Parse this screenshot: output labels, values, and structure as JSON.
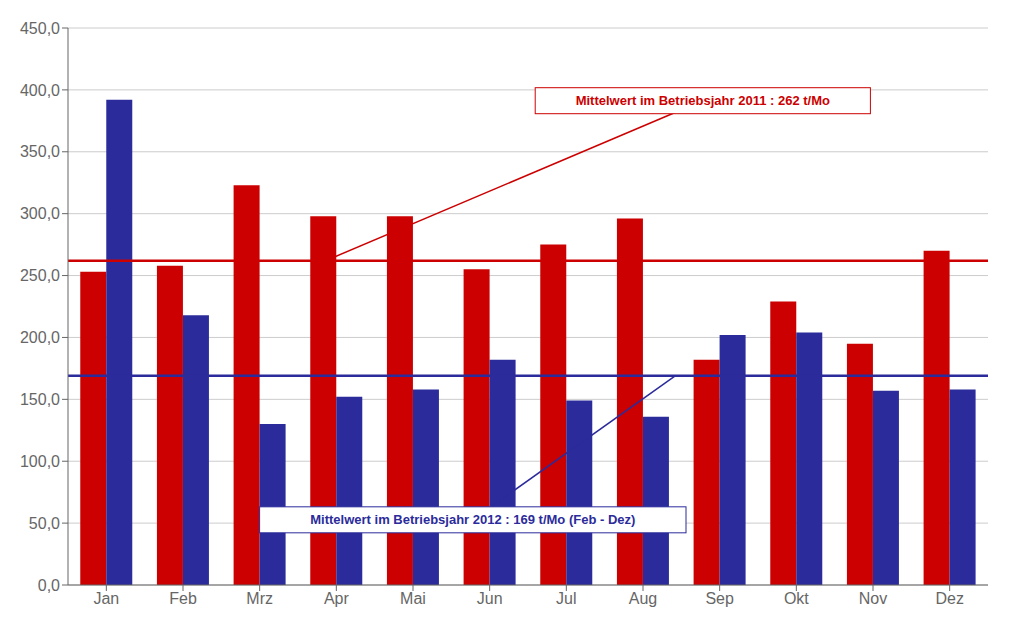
{
  "chart_data": {
    "type": "bar",
    "categories": [
      "Jan",
      "Feb",
      "Mrz",
      "Apr",
      "Mai",
      "Jun",
      "Jul",
      "Aug",
      "Sep",
      "Okt",
      "Nov",
      "Dez"
    ],
    "series": [
      {
        "color": "#CC0000",
        "values": [
          253,
          258,
          323,
          298,
          298,
          255,
          275,
          296,
          182,
          229,
          195,
          270
        ]
      },
      {
        "color": "#2B2B9B",
        "values": [
          392,
          218,
          130,
          152,
          158,
          182,
          149,
          136,
          202,
          204,
          157,
          158
        ]
      }
    ],
    "mean_lines": [
      {
        "value": 262,
        "color": "#CC0000",
        "annotation": "Mittelwert im Betriebsjahr 2011 : 262 t/Mo"
      },
      {
        "value": 169,
        "color": "#2B2B9B",
        "annotation": "Mittelwert im Betriebsjahr 2012 : 169 t/Mo (Feb - Dez)"
      }
    ],
    "ylim": [
      0,
      450
    ],
    "yticks": [
      {
        "value": 0,
        "label": "0,0"
      },
      {
        "value": 50,
        "label": "50,0"
      },
      {
        "value": 100,
        "label": "100,0"
      },
      {
        "value": 150,
        "label": "150,0"
      },
      {
        "value": 200,
        "label": "200,0"
      },
      {
        "value": 250,
        "label": "250,0"
      },
      {
        "value": 300,
        "label": "300,0"
      },
      {
        "value": 350,
        "label": "350,0"
      },
      {
        "value": 400,
        "label": "400,0"
      },
      {
        "value": 450,
        "label": "450,0"
      }
    ],
    "grid": true
  }
}
